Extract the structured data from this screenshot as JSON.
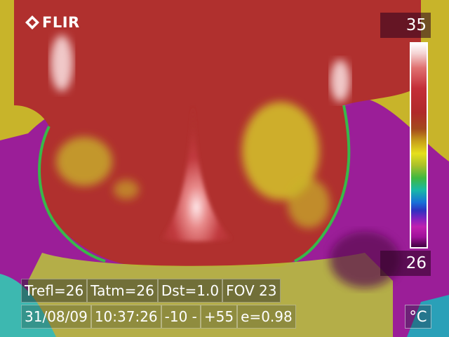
{
  "brand": {
    "name": "FLIR",
    "icon": "flir-diamond-logo-icon"
  },
  "scale": {
    "max": "35",
    "min": "26",
    "unit": "°C"
  },
  "parameters": {
    "trefl": "Trefl=26",
    "tatm": "Tatm=26",
    "dst": "Dst=1.0",
    "fov": "FOV 23"
  },
  "status": {
    "date": "31/08/09",
    "time": "10:37:26",
    "range_low": "-10 -",
    "range_high": "+55",
    "emissivity": "e=0.98"
  },
  "palette": {
    "hot_white": "#ffffff",
    "warm_red": "#b02a2a",
    "mid_yellow": "#e6e01c",
    "cool_green": "#40b840",
    "cold_magenta": "#c020b0",
    "cold_purple": "#7a1a8c"
  }
}
